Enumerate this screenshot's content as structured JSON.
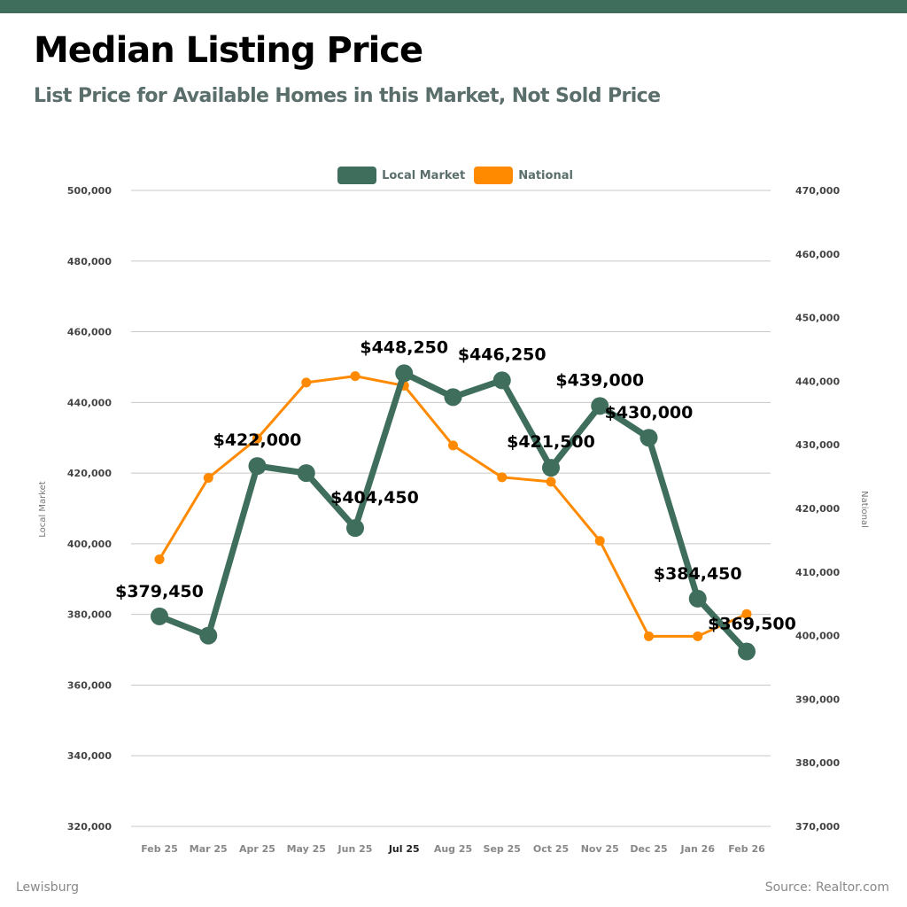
{
  "header": {
    "title": "Median Listing Price",
    "subtitle": "List Price for Available Homes in this Market, Not Sold Price"
  },
  "colors": {
    "brand": "#3f6e5c",
    "local": "#3f6e5c",
    "national": "#ff8a00",
    "subtitle": "#5a6e6c"
  },
  "footer": {
    "location": "Lewisburg",
    "source": "Source: Realtor.com"
  },
  "chart_data": {
    "type": "line",
    "title": "Median Listing Price",
    "subtitle": "List Price for Available Homes in this Market, Not Sold Price",
    "categories": [
      "Feb 25",
      "Mar 25",
      "Apr 25",
      "May 25",
      "Jun 25",
      "Jul 25",
      "Aug 25",
      "Sep 25",
      "Oct 25",
      "Nov 25",
      "Dec 25",
      "Jan 26",
      "Feb 26"
    ],
    "highlighted_category": "Jul 25",
    "legend": [
      "Local Market",
      "National"
    ],
    "legend_position": "top-center",
    "grid": true,
    "y_left": {
      "label": "Local Market",
      "range": [
        320000,
        500000
      ],
      "ticks": [
        "320,000",
        "340,000",
        "360,000",
        "380,000",
        "400,000",
        "420,000",
        "440,000",
        "460,000",
        "480,000",
        "500,000"
      ]
    },
    "y_right": {
      "label": "National",
      "range": [
        370000,
        470000
      ],
      "ticks": [
        "370,000",
        "380,000",
        "390,000",
        "400,000",
        "410,000",
        "420,000",
        "430,000",
        "440,000",
        "450,000",
        "460,000",
        "470,000"
      ]
    },
    "series": [
      {
        "name": "Local Market",
        "axis": "left",
        "values": [
          379450,
          374000,
          422000,
          420000,
          404450,
          448250,
          441500,
          446250,
          421500,
          439000,
          430000,
          384450,
          369500
        ],
        "labels": [
          "$379,450",
          null,
          "$422,000",
          null,
          "$404,450",
          "$448,250",
          null,
          "$446,250",
          "$421,500",
          "$439,000",
          "$430,000",
          "$384,450",
          "$369,500"
        ]
      },
      {
        "name": "National",
        "axis": "right",
        "values": [
          412000,
          424800,
          431000,
          439800,
          440800,
          439300,
          429900,
          424900,
          424200,
          414900,
          399900,
          399900,
          403400
        ]
      }
    ]
  }
}
